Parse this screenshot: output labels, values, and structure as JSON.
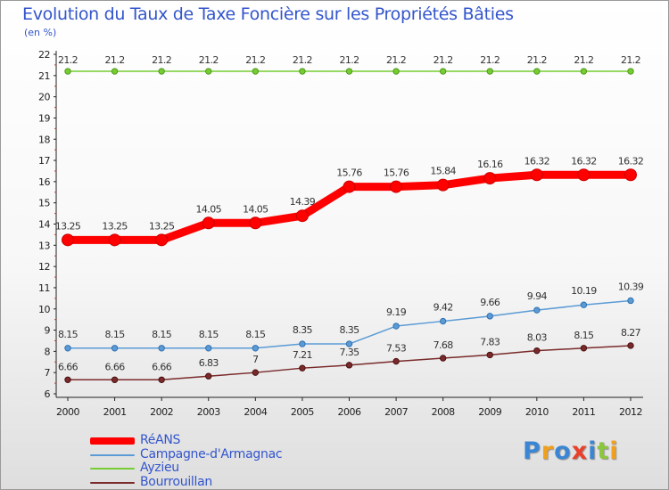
{
  "header": {
    "title": "Evolution du Taux de Taxe Foncière sur les Propriétés Bâties",
    "unit": "(en %)"
  },
  "chart_data": {
    "type": "line",
    "title": "Evolution du Taux de Taxe Foncière sur les Propriétés Bâties",
    "ylabel": "(en %)",
    "xlabel": "",
    "x": [
      "2000",
      "2001",
      "2002",
      "2003",
      "2004",
      "2005",
      "2006",
      "2007",
      "2008",
      "2009",
      "2010",
      "2011",
      "2012"
    ],
    "ylim": [
      6,
      22
    ],
    "yticks": [
      6,
      7,
      8,
      9,
      10,
      11,
      12,
      13,
      14,
      15,
      16,
      17,
      18,
      19,
      20,
      21,
      22
    ],
    "grid": false,
    "legend_position": "bottom-left",
    "series": [
      {
        "name": "RéANS",
        "color": "#ff0000",
        "values": [
          13.25,
          13.25,
          13.25,
          14.05,
          14.05,
          14.39,
          15.76,
          15.76,
          15.84,
          16.16,
          16.32,
          16.32,
          16.32
        ],
        "labels": [
          "13.25",
          "13.25",
          "13.25",
          "14.05",
          "14.05",
          "14.39",
          "15.76",
          "15.76",
          "15.84",
          "16.16",
          "16.32",
          "16.32",
          "16.32"
        ]
      },
      {
        "name": "Campagne-d'Armagnac",
        "color": "#5b9bd5",
        "values": [
          8.15,
          8.15,
          8.15,
          8.15,
          8.15,
          8.35,
          8.35,
          9.19,
          9.42,
          9.66,
          9.94,
          10.19,
          10.39
        ],
        "labels": [
          "8.15",
          "8.15",
          "8.15",
          "8.15",
          "8.15",
          "8.35",
          "8.35",
          "9.19",
          "9.42",
          "9.66",
          "9.94",
          "10.19",
          "10.39"
        ]
      },
      {
        "name": "Ayzieu",
        "color": "#77cc33",
        "values": [
          21.2,
          21.2,
          21.2,
          21.2,
          21.2,
          21.2,
          21.2,
          21.2,
          21.2,
          21.2,
          21.2,
          21.2,
          21.2
        ],
        "labels": [
          "21.2",
          "21.2",
          "21.2",
          "21.2",
          "21.2",
          "21.2",
          "21.2",
          "21.2",
          "21.2",
          "21.2",
          "21.2",
          "21.2",
          "21.2"
        ]
      },
      {
        "name": "Bourrouillan",
        "color": "#7a2a2a",
        "values": [
          6.66,
          6.66,
          6.66,
          6.83,
          7,
          7.21,
          7.35,
          7.53,
          7.68,
          7.83,
          8.03,
          8.15,
          8.27
        ],
        "labels": [
          "6.66",
          "6.66",
          "6.66",
          "6.83",
          "7",
          "7.21",
          "7.35",
          "7.53",
          "7.68",
          "7.83",
          "8.03",
          "8.15",
          "8.27"
        ]
      }
    ]
  },
  "logo": {
    "text": "Proxiti",
    "letters": [
      {
        "ch": "P",
        "color": "#3a86d4"
      },
      {
        "ch": "r",
        "color": "#f0a020"
      },
      {
        "ch": "o",
        "color": "#3a86d4"
      },
      {
        "ch": "x",
        "color": "#e8402a"
      },
      {
        "ch": "i",
        "color": "#3a86d4"
      },
      {
        "ch": "t",
        "color": "#8cc63f"
      },
      {
        "ch": "i",
        "color": "#f0a020"
      }
    ]
  }
}
